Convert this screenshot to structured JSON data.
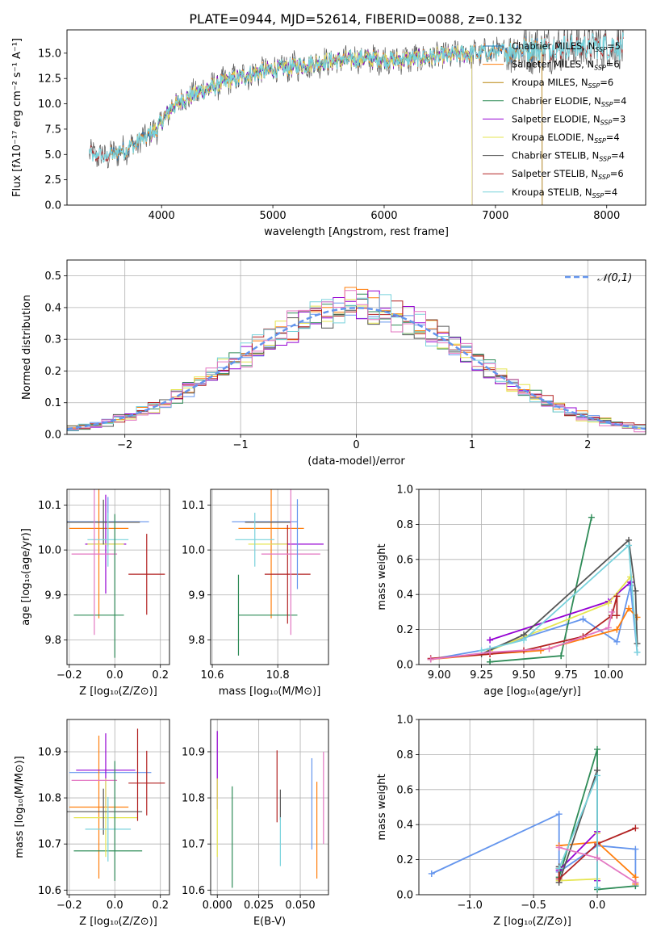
{
  "figure": {
    "title": "PLATE=0944, MJD=52614, FIBERID=0088, z=0.132"
  },
  "chart_data": [
    {
      "id": "spectrum",
      "type": "line",
      "xlabel": "wavelength [Angstrom, rest frame]",
      "ylabel": "Flux [fλ10⁻¹⁷ erg cm⁻² s⁻¹ A⁻¹]",
      "xlim": [
        3150,
        8350
      ],
      "ylim": [
        0,
        17.3
      ],
      "xticks": [
        4000,
        5000,
        6000,
        7000,
        8000
      ],
      "yticks": [
        0.0,
        2.5,
        5.0,
        7.5,
        10.0,
        12.5,
        15.0
      ],
      "grid": false,
      "legend_position": "right",
      "continuum_knots": {
        "x": [
          3350,
          3500,
          3700,
          3950,
          4100,
          4300,
          4600,
          4900,
          5200,
          5500,
          5800,
          6100,
          6400,
          6700,
          7000,
          7300,
          7600,
          7900,
          8150
        ],
        "y": [
          5.0,
          4.8,
          5.6,
          7.4,
          9.8,
          11.0,
          12.3,
          13.2,
          13.7,
          14.2,
          14.5,
          14.3,
          14.6,
          14.9,
          15.1,
          15.4,
          15.6,
          15.7,
          15.7
        ]
      },
      "series": [
        {
          "name": "Chabrier MILES, N_SSP=5",
          "color": "#1f77b4",
          "x_range": [
            3540,
            7420
          ]
        },
        {
          "name": "Salpeter MILES, N_SSP=6",
          "color": "#ff7f0e",
          "x_range": [
            3540,
            7420
          ]
        },
        {
          "name": "Kroupa MILES, N_SSP=6",
          "color": "#b8860b",
          "x_range": [
            3540,
            7420
          ]
        },
        {
          "name": "Chabrier ELODIE, N_SSP=4",
          "color": "#2e8b57",
          "x_range": [
            3900,
            6790
          ]
        },
        {
          "name": "Salpeter ELODIE, N_SSP=3",
          "color": "#9400d3",
          "x_range": [
            3900,
            6790
          ]
        },
        {
          "name": "Kroupa ELODIE, N_SSP=4",
          "color": "#e5e550",
          "x_range": [
            3900,
            6790
          ]
        },
        {
          "name": "Chabrier STELIB, N_SSP=4",
          "color": "#555555",
          "x_range": [
            3350,
            8150
          ]
        },
        {
          "name": "Salpeter STELIB, N_SSP=6",
          "color": "#b22222",
          "x_range": [
            3350,
            8150
          ]
        },
        {
          "name": "Kroupa STELIB, N_SSP=4",
          "color": "#78d2dc",
          "x_range": [
            3350,
            8150
          ]
        }
      ]
    },
    {
      "id": "residuals",
      "type": "histogram",
      "xlabel": "(data-model)/error",
      "ylabel": "Normed distribution",
      "xlim": [
        -2.5,
        2.5
      ],
      "ylim": [
        0,
        0.55
      ],
      "xticks": [
        -2,
        -1,
        0,
        1,
        2
      ],
      "yticks": [
        0.0,
        0.1,
        0.2,
        0.3,
        0.4,
        0.5
      ],
      "grid": true,
      "legend_position": "top-right",
      "reference": {
        "name": "𝒩(0,1)",
        "color": "#6495ed",
        "style": "dashed"
      },
      "bin_width": 0.1,
      "series_colors": [
        "#6495ed",
        "#ff7f0e",
        "#2e8b57",
        "#9400d3",
        "#e5e550",
        "#555555",
        "#b22222",
        "#78d2dc",
        "#e377c2"
      ]
    },
    {
      "id": "age-vs-z",
      "type": "errorbar",
      "xlabel": "Z [log₁₀(Z/Z⊙)]",
      "ylabel": "age  [log₁₀(age/yr)]",
      "xlim": [
        -0.21,
        0.24
      ],
      "ylim": [
        9.745,
        10.135
      ],
      "xticks": [
        -0.2,
        0.0,
        0.2
      ],
      "yticks": [
        9.8,
        9.9,
        10.0,
        10.1
      ],
      "grid": true,
      "points": [
        {
          "x": -0.03,
          "y": 10.063,
          "xerr": 0.18,
          "yerr": 0.055,
          "color": "#6495ed"
        },
        {
          "x": -0.07,
          "y": 10.048,
          "xerr": 0.13,
          "yerr": 0.2,
          "color": "#ff7f0e"
        },
        {
          "x": -0.07,
          "y": 9.855,
          "xerr": 0.11,
          "yerr": 0.0,
          "color": "#2e8b57"
        },
        {
          "x": -0.04,
          "y": 10.013,
          "xerr": 0.09,
          "yerr": 0.11,
          "color": "#9400d3"
        },
        {
          "x": -0.04,
          "y": 10.013,
          "xerr": 0.08,
          "yerr": 0.0,
          "color": "#e5e550"
        },
        {
          "x": -0.05,
          "y": 10.062,
          "xerr": 0.16,
          "yerr": 0.05,
          "color": "#555555"
        },
        {
          "x": 0.14,
          "y": 9.946,
          "xerr": 0.08,
          "yerr": 0.09,
          "color": "#b22222"
        },
        {
          "x": -0.03,
          "y": 10.023,
          "xerr": 0.09,
          "yerr": 0.06,
          "color": "#78d2dc"
        },
        {
          "x": -0.09,
          "y": 9.991,
          "xerr": 0.1,
          "yerr": 0.18,
          "color": "#e377c2"
        },
        {
          "x": 0.0,
          "y": 9.92,
          "xerr": 0.0,
          "yerr": 0.16,
          "color": "#2e8b57"
        }
      ]
    },
    {
      "id": "age-vs-mass",
      "type": "errorbar",
      "xlabel": "mass [log₁₀(M/M⊙)]",
      "ylabel": "",
      "xlim": [
        10.595,
        10.955
      ],
      "ylim": [
        9.745,
        10.135
      ],
      "xticks": [
        10.6,
        10.8
      ],
      "yticks": [
        9.8,
        9.9,
        10.0,
        10.1
      ],
      "grid": true,
      "points": [
        {
          "x": 10.76,
          "y": 10.063,
          "xerr": 0.1,
          "yerr": 0.0,
          "color": "#6495ed"
        },
        {
          "x": 10.78,
          "y": 10.048,
          "xerr": 0.1,
          "yerr": 0.2,
          "color": "#ff7f0e"
        },
        {
          "x": 10.77,
          "y": 9.855,
          "xerr": 0.09,
          "yerr": 0.0,
          "color": "#2e8b57"
        },
        {
          "x": 10.86,
          "y": 10.013,
          "xerr": 0.08,
          "yerr": 0.0,
          "color": "#9400d3"
        },
        {
          "x": 10.77,
          "y": 10.013,
          "xerr": 0.06,
          "yerr": 0.0,
          "color": "#e5e550"
        },
        {
          "x": 10.77,
          "y": 10.062,
          "xerr": 0.07,
          "yerr": 0.0,
          "color": "#555555"
        },
        {
          "x": 10.83,
          "y": 9.946,
          "xerr": 0.07,
          "yerr": 0.11,
          "color": "#b22222"
        },
        {
          "x": 10.73,
          "y": 10.023,
          "xerr": 0.06,
          "yerr": 0.06,
          "color": "#78d2dc"
        },
        {
          "x": 10.84,
          "y": 9.991,
          "xerr": 0.09,
          "yerr": 0.18,
          "color": "#e377c2"
        },
        {
          "x": 10.86,
          "y": 10.013,
          "xerr": 0.0,
          "yerr": 0.1,
          "color": "#6495ed"
        },
        {
          "x": 10.68,
          "y": 9.855,
          "xerr": 0.0,
          "yerr": 0.09,
          "color": "#2e8b57"
        }
      ]
    },
    {
      "id": "weight-vs-age",
      "type": "line",
      "xlabel": "age  [log₁₀(age/yr)]",
      "ylabel": "mass weight",
      "xlim": [
        8.88,
        10.22
      ],
      "ylim": [
        0,
        1.0
      ],
      "xticks": [
        9.0,
        9.25,
        9.5,
        9.75,
        10.0
      ],
      "xticklabels": [
        "9.00",
        "9.25",
        "9.50",
        "9.75",
        "10.00"
      ],
      "yticks": [
        0.0,
        0.2,
        0.4,
        0.6,
        0.8,
        1.0
      ],
      "grid": true,
      "series": [
        {
          "color": "#6495ed",
          "x": [
            8.95,
            9.3,
            9.85,
            10.05,
            10.13,
            10.17
          ],
          "y": [
            0.03,
            0.09,
            0.26,
            0.13,
            0.45,
            0.07
          ]
        },
        {
          "color": "#ff7f0e",
          "x": [
            8.95,
            9.3,
            9.6,
            10.05,
            10.12,
            10.17
          ],
          "y": [
            0.03,
            0.06,
            0.08,
            0.2,
            0.32,
            0.27
          ]
        },
        {
          "color": "#2e8b57",
          "x": [
            9.3,
            9.72,
            9.9,
            9.72,
            9.3
          ],
          "y": [
            0.015,
            0.05,
            0.84,
            0.05,
            0.015
          ]
        },
        {
          "color": "#9400d3",
          "x": [
            9.3,
            10.0,
            10.13
          ],
          "y": [
            0.14,
            0.36,
            0.47
          ]
        },
        {
          "color": "#e5e550",
          "x": [
            9.3,
            10.0,
            10.13
          ],
          "y": [
            0.08,
            0.35,
            0.5
          ]
        },
        {
          "color": "#555555",
          "x": [
            9.25,
            9.5,
            10.12,
            10.16,
            10.17
          ],
          "y": [
            0.06,
            0.17,
            0.71,
            0.42,
            0.12
          ]
        },
        {
          "color": "#b22222",
          "x": [
            8.95,
            9.3,
            9.5,
            9.85,
            10.02,
            10.05,
            10.05
          ],
          "y": [
            0.035,
            0.06,
            0.08,
            0.16,
            0.28,
            0.39,
            0.28
          ]
        },
        {
          "color": "#78d2dc",
          "x": [
            9.25,
            9.5,
            10.12,
            10.17
          ],
          "y": [
            0.08,
            0.14,
            0.68,
            0.07
          ]
        },
        {
          "color": "#e377c2",
          "x": [
            8.95,
            9.3,
            9.65,
            10.0,
            10.02
          ],
          "y": [
            0.03,
            0.07,
            0.09,
            0.21,
            0.3
          ]
        }
      ]
    },
    {
      "id": "mass-vs-z",
      "type": "errorbar",
      "xlabel": "Z [log₁₀(Z/Z⊙)]",
      "ylabel": "mass [log₁₀(M/M⊙)]",
      "xlim": [
        -0.21,
        0.24
      ],
      "ylim": [
        10.59,
        10.97
      ],
      "xticks": [
        -0.2,
        0.0,
        0.2
      ],
      "yticks": [
        10.6,
        10.7,
        10.8,
        10.9
      ],
      "grid": true,
      "points": [
        {
          "x": -0.02,
          "y": 10.855,
          "xerr": 0.18,
          "yerr": 0.0,
          "color": "#6495ed"
        },
        {
          "x": -0.07,
          "y": 10.78,
          "xerr": 0.13,
          "yerr": 0.155,
          "color": "#ff7f0e"
        },
        {
          "x": -0.03,
          "y": 10.685,
          "xerr": 0.15,
          "yerr": 0.0,
          "color": "#2e8b57"
        },
        {
          "x": -0.04,
          "y": 10.86,
          "xerr": 0.13,
          "yerr": 0.08,
          "color": "#9400d3"
        },
        {
          "x": -0.04,
          "y": 10.757,
          "xerr": 0.14,
          "yerr": 0.085,
          "color": "#e5e550"
        },
        {
          "x": -0.05,
          "y": 10.77,
          "xerr": 0.17,
          "yerr": 0.05,
          "color": "#555555"
        },
        {
          "x": 0.14,
          "y": 10.832,
          "xerr": 0.08,
          "yerr": 0.07,
          "color": "#b22222"
        },
        {
          "x": -0.03,
          "y": 10.732,
          "xerr": 0.1,
          "yerr": 0.07,
          "color": "#78d2dc"
        },
        {
          "x": -0.09,
          "y": 10.838,
          "xerr": 0.1,
          "yerr": 0.0,
          "color": "#e377c2"
        },
        {
          "x": 0.0,
          "y": 10.75,
          "xerr": 0.0,
          "yerr": 0.13,
          "color": "#2e8b57"
        },
        {
          "x": 0.1,
          "y": 10.85,
          "xerr": 0.0,
          "yerr": 0.1,
          "color": "#b22222"
        }
      ]
    },
    {
      "id": "mass-vs-ebv",
      "type": "errorbar",
      "xlabel": "E(B-V)",
      "ylabel": "",
      "xlim": [
        -0.004,
        0.067
      ],
      "ylim": [
        10.59,
        10.97
      ],
      "xticks": [
        0.0,
        0.025,
        0.05
      ],
      "xticklabels": [
        "0.000",
        "0.025",
        "0.050"
      ],
      "yticks": [
        10.6,
        10.7,
        10.8,
        10.9
      ],
      "grid": true,
      "points": [
        {
          "x": 0.0,
          "y": 10.86,
          "xerr": 0.0,
          "yerr": 0.085,
          "color": "#9400d3"
        },
        {
          "x": 0.0,
          "y": 10.757,
          "xerr": 0.0,
          "yerr": 0.085,
          "color": "#e5e550"
        },
        {
          "x": 0.009,
          "y": 10.715,
          "xerr": 0.0,
          "yerr": 0.11,
          "color": "#2e8b57"
        },
        {
          "x": 0.036,
          "y": 10.825,
          "xerr": 0.0,
          "yerr": 0.078,
          "color": "#b22222"
        },
        {
          "x": 0.038,
          "y": 10.785,
          "xerr": 0.0,
          "yerr": 0.033,
          "color": "#555555"
        },
        {
          "x": 0.038,
          "y": 10.705,
          "xerr": 0.0,
          "yerr": 0.053,
          "color": "#78d2dc"
        },
        {
          "x": 0.057,
          "y": 10.787,
          "xerr": 0.0,
          "yerr": 0.099,
          "color": "#6495ed"
        },
        {
          "x": 0.06,
          "y": 10.73,
          "xerr": 0.0,
          "yerr": 0.105,
          "color": "#ff7f0e"
        },
        {
          "x": 0.064,
          "y": 10.8,
          "xerr": 0.0,
          "yerr": 0.1,
          "color": "#e377c2"
        }
      ]
    },
    {
      "id": "weight-vs-z",
      "type": "line",
      "xlabel": "Z [log₁₀(Z/Z⊙)]",
      "ylabel": "mass weight",
      "xlim": [
        -1.4,
        0.38
      ],
      "ylim": [
        0,
        1.0
      ],
      "xticks": [
        -1.0,
        -0.5,
        0.0
      ],
      "yticks": [
        0.0,
        0.2,
        0.4,
        0.6,
        0.8,
        1.0
      ],
      "grid": true,
      "series": [
        {
          "color": "#6495ed",
          "x": [
            -1.3,
            -0.3,
            -0.3,
            0.0,
            0.3,
            0.3
          ],
          "y": [
            0.12,
            0.46,
            0.13,
            0.28,
            0.26,
            0.05
          ]
        },
        {
          "color": "#ff7f0e",
          "x": [
            -0.3,
            0.0,
            0.3,
            0.3
          ],
          "y": [
            0.28,
            0.3,
            0.1,
            0.06
          ]
        },
        {
          "color": "#2e8b57",
          "x": [
            -0.3,
            0.0,
            0.0,
            0.3
          ],
          "y": [
            0.1,
            0.83,
            0.03,
            0.05
          ]
        },
        {
          "color": "#9400d3",
          "x": [
            -0.3,
            0.0,
            0.0
          ],
          "y": [
            0.14,
            0.36,
            0.08
          ]
        },
        {
          "color": "#e5e550",
          "x": [
            -0.3,
            0.0,
            0.0
          ],
          "y": [
            0.08,
            0.09,
            0.35
          ]
        },
        {
          "color": "#555555",
          "x": [
            -0.3,
            -0.3,
            0.0,
            0.0
          ],
          "y": [
            0.16,
            0.07,
            0.71,
            0.04
          ]
        },
        {
          "color": "#b22222",
          "x": [
            -0.3,
            -0.3,
            0.0,
            0.3
          ],
          "y": [
            0.15,
            0.09,
            0.29,
            0.38
          ]
        },
        {
          "color": "#78d2dc",
          "x": [
            -0.3,
            0.0,
            0.0
          ],
          "y": [
            0.15,
            0.68,
            0.04
          ]
        },
        {
          "color": "#e377c2",
          "x": [
            -0.3,
            0.0,
            0.3
          ],
          "y": [
            0.27,
            0.21,
            0.07
          ]
        }
      ]
    }
  ]
}
